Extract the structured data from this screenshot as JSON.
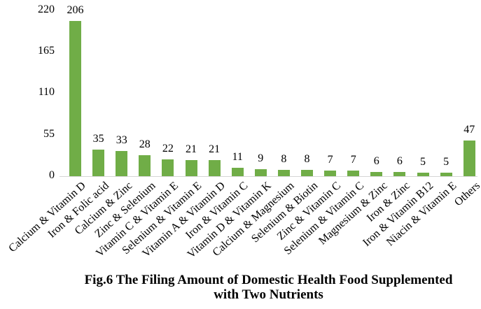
{
  "figure": {
    "title_lines": [
      "Fig.6 The Filing Amount of Domestic Health Food Supplemented",
      "with Two Nutrients"
    ]
  },
  "chart_data": {
    "type": "bar",
    "title": "Fig.6 The Filing Amount of Domestic Health Food Supplemented with Two Nutrients",
    "categories": [
      "Calcium & Vitamin D",
      "Iron & Folic acid",
      "Calcium & Zinc",
      "Zinc & Selenium",
      "Vitamin C & Vitamin E",
      "Selenium & Vitamin E",
      "Vitamin A & Vitamin D",
      "Iron & Vitamin C",
      "Vitamin D & Vitamin K",
      "Calcium & Magnesium",
      "Selenium & Biotin",
      "Zinc & Vitamin C",
      "Selenium & Vitamin C",
      "Magnesium & Zinc",
      "Iron & Zinc",
      "Iron & Vitamin B12",
      "Niacin & Vitamin E",
      "Others"
    ],
    "values": [
      206,
      35,
      33,
      28,
      22,
      21,
      21,
      11,
      9,
      8,
      8,
      7,
      7,
      6,
      6,
      5,
      5,
      47
    ],
    "yticks": [
      0,
      55,
      110,
      165,
      220
    ],
    "ylim": [
      0,
      220
    ],
    "xlabel": "",
    "ylabel": "",
    "grid": false,
    "legend_position": "none",
    "data_labels_shown": true,
    "bar_color": "#70ad47",
    "axis_line_color": "#d6d6d6",
    "label_color": "#000000"
  }
}
